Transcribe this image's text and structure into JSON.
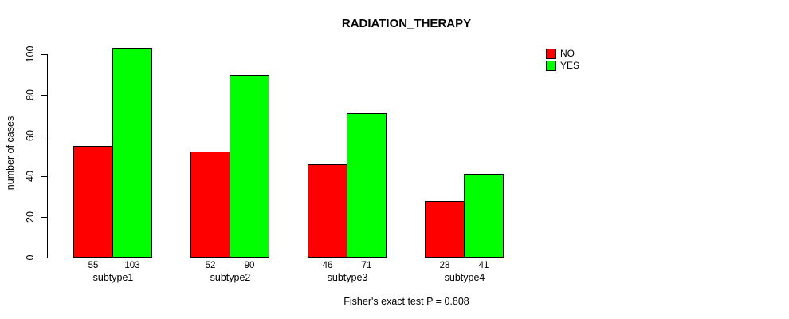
{
  "chart_data": {
    "type": "bar",
    "title": "RADIATION_THERAPY",
    "ylabel": "number of cases",
    "xlabel": "",
    "footnote": "Fisher's exact test P = 0.808",
    "categories": [
      "subtype1",
      "subtype2",
      "subtype3",
      "subtype4"
    ],
    "series": [
      {
        "name": "NO",
        "color": "#ff0000",
        "values": [
          55,
          52,
          46,
          28
        ]
      },
      {
        "name": "YES",
        "color": "#00ff00",
        "values": [
          103,
          90,
          71,
          41
        ]
      }
    ],
    "yticks": [
      0,
      20,
      40,
      60,
      80,
      100
    ],
    "ylim": [
      0,
      103
    ],
    "grid": false,
    "legend_position": "top-right",
    "axis_color": "#000000",
    "background": "#ffffff"
  }
}
